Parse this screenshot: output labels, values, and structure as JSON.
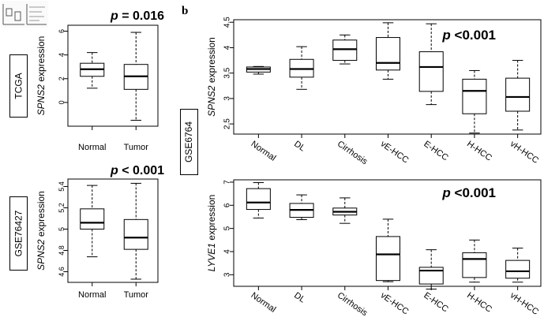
{
  "panel_b_label": "b",
  "dataset_labels": {
    "tcga": "TCGA",
    "gse76427": "GSE76427",
    "gse6764": "GSE6764"
  },
  "chart_data": [
    {
      "id": "tcga",
      "type": "box",
      "pvalue": {
        "p": "p",
        "rest": " = 0.016"
      },
      "ylabel": {
        "gene": "SPNS2",
        "rest": " expression"
      },
      "yticks": [
        0,
        2,
        4,
        6
      ],
      "ylim": [
        -2,
        6.5
      ],
      "categories": [
        "Normal",
        "Tumor"
      ],
      "boxes": [
        {
          "min": 1.2,
          "q1": 2.2,
          "median": 2.8,
          "q3": 3.3,
          "max": 4.2
        },
        {
          "min": -1.5,
          "q1": 1.1,
          "median": 2.2,
          "q3": 3.2,
          "max": 5.9
        }
      ]
    },
    {
      "id": "gse76427",
      "type": "box",
      "pvalue": {
        "p": "p",
        "rest": " < 0.001"
      },
      "ylabel": {
        "gene": "SPNS2",
        "rest": " expression"
      },
      "yticks": [
        4.6,
        4.8,
        5,
        5.2,
        5.4
      ],
      "ylim": [
        4.5,
        5.47
      ],
      "categories": [
        "Normal",
        "Tumor"
      ],
      "boxes": [
        {
          "min": 4.74,
          "q1": 5.0,
          "median": 5.06,
          "q3": 5.19,
          "max": 5.41
        },
        {
          "min": 4.53,
          "q1": 4.81,
          "median": 4.92,
          "q3": 5.09,
          "max": 5.43
        }
      ]
    },
    {
      "id": "gse6764_spns2",
      "type": "box",
      "pvalue": {
        "p": "p",
        "rest": " <0.001"
      },
      "ylabel": {
        "gene": "SPNS2",
        "rest": " expression"
      },
      "yticks": [
        2.5,
        3,
        3.5,
        4,
        4.5
      ],
      "ylim": [
        2.3,
        4.55
      ],
      "categories": [
        "Normal",
        "DL",
        "Cirrhosis",
        "vE-HCC",
        "E-HCC",
        "H-HCC",
        "vH-HCC"
      ],
      "boxes": [
        {
          "min": 3.48,
          "q1": 3.52,
          "median": 3.58,
          "q3": 3.62,
          "max": 3.63
        },
        {
          "min": 3.18,
          "q1": 3.42,
          "median": 3.58,
          "q3": 3.77,
          "max": 4.02
        },
        {
          "min": 3.68,
          "q1": 3.75,
          "median": 3.97,
          "q3": 4.15,
          "max": 4.25
        },
        {
          "min": 3.38,
          "q1": 3.56,
          "median": 3.7,
          "q3": 4.2,
          "max": 4.49
        },
        {
          "min": 2.88,
          "q1": 3.14,
          "median": 3.62,
          "q3": 3.92,
          "max": 4.47
        },
        {
          "min": 2.32,
          "q1": 2.7,
          "median": 3.15,
          "q3": 3.38,
          "max": 3.55
        },
        {
          "min": 2.38,
          "q1": 2.75,
          "median": 3.03,
          "q3": 3.4,
          "max": 3.75
        }
      ]
    },
    {
      "id": "gse6764_lyve1",
      "type": "box",
      "pvalue": {
        "p": "p",
        "rest": " <0.001"
      },
      "ylabel": {
        "gene": "LYVE1",
        "rest": " expression"
      },
      "yticks": [
        3,
        4,
        5,
        6,
        7
      ],
      "ylim": [
        2.5,
        7.1
      ],
      "categories": [
        "Normal",
        "DL",
        "Cirrhosis",
        "vE-HCC",
        "E-HCC",
        "H-HCC",
        "vH-HCC"
      ],
      "boxes": [
        {
          "min": 5.45,
          "q1": 5.82,
          "median": 6.12,
          "q3": 6.72,
          "max": 6.98
        },
        {
          "min": 5.38,
          "q1": 5.48,
          "median": 5.8,
          "q3": 6.08,
          "max": 6.45
        },
        {
          "min": 5.22,
          "q1": 5.58,
          "median": 5.72,
          "q3": 5.88,
          "max": 6.32
        },
        {
          "min": 2.7,
          "q1": 2.75,
          "median": 3.88,
          "q3": 4.65,
          "max": 5.4
        },
        {
          "min": 2.38,
          "q1": 2.6,
          "median": 3.18,
          "q3": 3.32,
          "max": 4.08
        },
        {
          "min": 2.68,
          "q1": 2.88,
          "median": 3.68,
          "q3": 3.95,
          "max": 4.5
        },
        {
          "min": 2.68,
          "q1": 2.85,
          "median": 3.15,
          "q3": 3.62,
          "max": 4.15
        }
      ]
    }
  ]
}
